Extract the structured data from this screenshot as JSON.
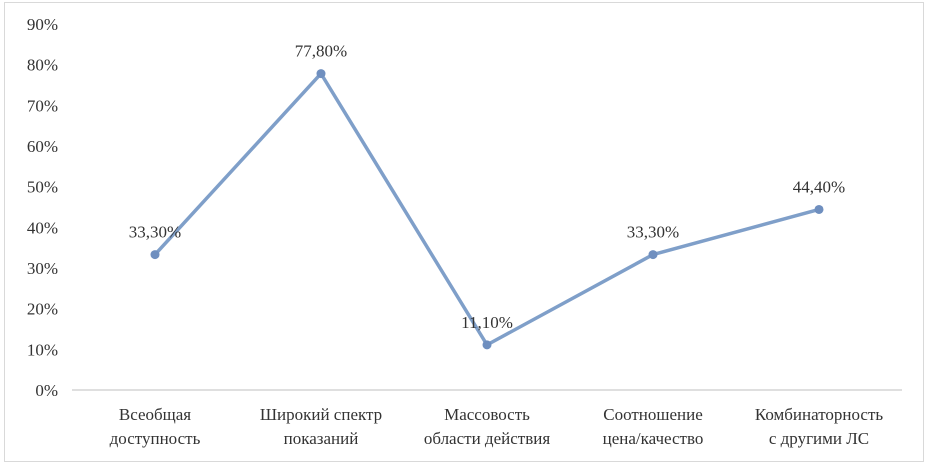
{
  "chart_data": {
    "type": "line",
    "categories": [
      [
        "Всеобщая",
        "доступность"
      ],
      [
        "Широкий спектр",
        "показаний"
      ],
      [
        "Массовость",
        "области действия"
      ],
      [
        "Соотношение",
        "цена/качество"
      ],
      [
        "Комбинаторность",
        "с другими ЛС"
      ]
    ],
    "values": [
      33.3,
      77.8,
      11.1,
      33.3,
      44.4
    ],
    "data_labels": [
      "33,30%",
      "77,80%",
      "11,10%",
      "33,30%",
      "44,40%"
    ],
    "y_ticks": [
      "0%",
      "10%",
      "20%",
      "30%",
      "40%",
      "50%",
      "60%",
      "70%",
      "80%",
      "90%"
    ],
    "ylim": [
      0,
      90
    ],
    "grid": false,
    "line_color": "#7f9fc9",
    "marker_color": "#6f8fbf"
  }
}
